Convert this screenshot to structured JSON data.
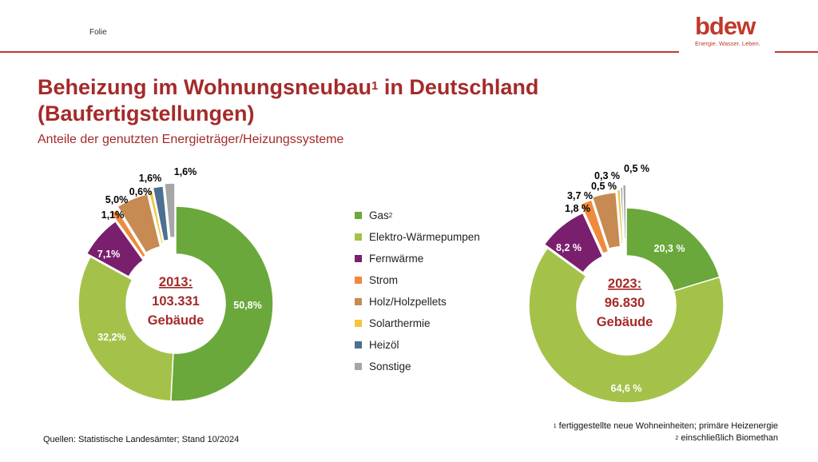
{
  "header": {
    "slide_label": "Folie",
    "logo_text": "bdew",
    "logo_tagline": "Energie. Wasser. Leben."
  },
  "title": {
    "line1": "Beheizung im Wohnungsneubau",
    "footnote_mark": "1",
    "line1_end": " in Deutschland",
    "line2": "(Baufertigstellungen)"
  },
  "subtitle": "Anteile der genutzten Energieträger/Heizungssysteme",
  "legend": [
    {
      "label": "Gas",
      "sup": "2",
      "color": "#6aa83b"
    },
    {
      "label": "Elektro-Wärmepumpen",
      "sup": "",
      "color": "#a4c24a"
    },
    {
      "label": "Fernwärme",
      "sup": "",
      "color": "#7a1f6e"
    },
    {
      "label": "Strom",
      "sup": "",
      "color": "#ef8a3c"
    },
    {
      "label": "Holz/Holzpellets",
      "sup": "",
      "color": "#c68a52"
    },
    {
      "label": "Solarthermie",
      "sup": "",
      "color": "#f2c53d"
    },
    {
      "label": "Heizöl",
      "sup": "",
      "color": "#4d6f91"
    },
    {
      "label": "Sonstige",
      "sup": "",
      "color": "#a6a6a6"
    }
  ],
  "chart_data": [
    {
      "type": "pie",
      "subtype": "donut",
      "center_year": "2013:",
      "center_count": "103.331",
      "center_unit": "Gebäude",
      "categories": [
        "Gas",
        "Elektro-Wärmepumpen",
        "Fernwärme",
        "Strom",
        "Holz/Holzpellets",
        "Solarthermie",
        "Heizöl",
        "Sonstige"
      ],
      "values": [
        50.8,
        32.2,
        7.1,
        1.1,
        5.0,
        0.6,
        1.6,
        1.6
      ],
      "labels": [
        "50,8%",
        "32,2%",
        "7,1%",
        "1,1%",
        "5,0%",
        "0,6%",
        "1,6%",
        "1,6%"
      ]
    },
    {
      "type": "pie",
      "subtype": "donut",
      "center_year": "2023:",
      "center_count": "96.830",
      "center_unit": "Gebäude",
      "categories": [
        "Gas",
        "Elektro-Wärmepumpen",
        "Fernwärme",
        "Strom",
        "Holz/Holzpellets",
        "Solarthermie",
        "Heizöl",
        "Sonstige"
      ],
      "values": [
        20.3,
        64.6,
        8.2,
        1.8,
        3.7,
        0.5,
        0.3,
        0.5
      ],
      "labels": [
        "20,3 %",
        "64,6 %",
        "8,2 %",
        "1,8 %",
        "3,7 %",
        "0,5 %",
        "0,3 %",
        "0,5 %"
      ]
    }
  ],
  "footer": {
    "source": "Quellen: Statistische Landesämter; Stand 10/2024",
    "footnote1_mark": "1",
    "footnote1": " fertiggestellte neue Wohneinheiten; primäre Heizenergie",
    "footnote2_mark": "2",
    "footnote2": " einschließlich Biomethan"
  }
}
